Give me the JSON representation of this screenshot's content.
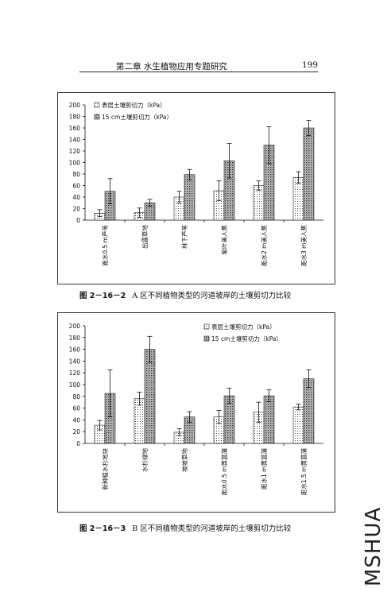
{
  "header": {
    "chapter": "第二章 水生植物应用专题研究",
    "page": "199"
  },
  "watermark": "MSHUA",
  "captions": [
    {
      "fig": "图 2－16－2",
      "text": "A 区不同植物类型的河道坡岸的土壤剪切力比较"
    },
    {
      "fig": "图 2－16－3",
      "text": "B 区不同植物类型的河道坡岸的土壤剪切力比较"
    }
  ],
  "chart_data": [
    {
      "type": "bar",
      "ylim": [
        0,
        200
      ],
      "yticks": [
        0,
        20,
        40,
        60,
        80,
        100,
        120,
        140,
        160,
        180,
        200
      ],
      "categories": [
        "距水0.5 m芦苇",
        "出露草地",
        "林下芦苇",
        "紫叶美人蕉",
        "距水2 m美人蕉",
        "距水3 m美人蕉"
      ],
      "series": [
        {
          "name": "表层土壤剪切力（kPa）",
          "values": [
            12,
            13,
            40,
            51,
            60,
            74
          ],
          "errors": [
            6,
            8,
            10,
            17,
            8,
            10
          ]
        },
        {
          "name": "15 cm土壤剪切力（kPa）",
          "values": [
            50,
            30,
            79,
            103,
            130,
            160
          ],
          "errors": [
            22,
            6,
            9,
            30,
            32,
            13
          ]
        }
      ],
      "legend": "top-left"
    },
    {
      "type": "bar",
      "ylim": [
        0,
        200
      ],
      "yticks": [
        0,
        20,
        40,
        60,
        80,
        100,
        120,
        140,
        160,
        180,
        200
      ],
      "categories": [
        "新种植水杉地块",
        "水杉绿地",
        "坡坡草地",
        "距水0.5 m黄菖蒲",
        "距水1 m黄菖蒲",
        "距水1.5 m黄菖蒲"
      ],
      "series": [
        {
          "name": "表层土壤剪切力（kPa）",
          "values": [
            31,
            76,
            19,
            45,
            53,
            62
          ],
          "errors": [
            8,
            11,
            6,
            11,
            17,
            5
          ]
        },
        {
          "name": "15 cm土壤剪切力（kPa）",
          "values": [
            85,
            160,
            45,
            81,
            81,
            110
          ],
          "errors": [
            40,
            22,
            9,
            13,
            10,
            15
          ]
        }
      ],
      "legend": "top-right"
    }
  ]
}
